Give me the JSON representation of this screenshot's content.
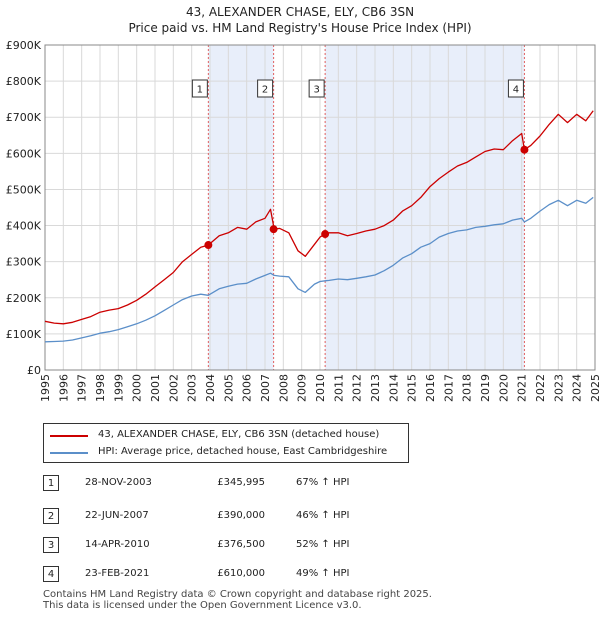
{
  "title": "43, ALEXANDER CHASE, ELY, CB6 3SN",
  "subtitle": "Price paid vs. HM Land Registry's House Price Index (HPI)",
  "colors": {
    "property": "#cc0000",
    "hpi": "#5b8fc9",
    "shade": "#e8eefa",
    "grid": "#d9d9d9"
  },
  "chart_data": {
    "type": "line",
    "title": "43, ALEXANDER CHASE, ELY, CB6 3SN",
    "subtitle": "Price paid vs. HM Land Registry's House Price Index (HPI)",
    "xlabel": "",
    "ylabel": "",
    "xlim": [
      1995.0,
      2025.0
    ],
    "ylim": [
      0,
      900000
    ],
    "x_ticks": [
      1995,
      1996,
      1997,
      1998,
      1999,
      2000,
      2001,
      2002,
      2003,
      2004,
      2005,
      2006,
      2007,
      2008,
      2009,
      2010,
      2011,
      2012,
      2013,
      2014,
      2015,
      2016,
      2017,
      2018,
      2019,
      2020,
      2021,
      2022,
      2023,
      2024,
      2025
    ],
    "x_tick_labels": [
      "1995",
      "1996",
      "1997",
      "1998",
      "1999",
      "2000",
      "2001",
      "2002",
      "2003",
      "2004",
      "2005",
      "2006",
      "2007",
      "2008",
      "2009",
      "2010",
      "2011",
      "2012",
      "2013",
      "2014",
      "2015",
      "2016",
      "2017",
      "2018",
      "2019",
      "2020",
      "2021",
      "2022",
      "2023",
      "2024",
      "2025"
    ],
    "y_ticks": [
      0,
      100000,
      200000,
      300000,
      400000,
      500000,
      600000,
      700000,
      800000,
      900000
    ],
    "y_tick_labels": [
      "£0",
      "£100K",
      "£200K",
      "£300K",
      "£400K",
      "£500K",
      "£600K",
      "£700K",
      "£800K",
      "£900K"
    ],
    "grid": true,
    "series": [
      {
        "name": "43, ALEXANDER CHASE, ELY, CB6 3SN (detached house)",
        "color": "#cc0000",
        "x": [
          1995.0,
          1995.5,
          1996.0,
          1996.5,
          1997.0,
          1997.5,
          1998.0,
          1998.5,
          1999.0,
          1999.5,
          2000.0,
          2000.5,
          2001.0,
          2001.5,
          2002.0,
          2002.5,
          2003.0,
          2003.5,
          2003.9,
          2004.5,
          2005.0,
          2005.5,
          2006.0,
          2006.5,
          2007.0,
          2007.3,
          2007.5,
          2007.8,
          2008.3,
          2008.8,
          2009.2,
          2009.7,
          2010.0,
          2010.28,
          2010.5,
          2011.0,
          2011.5,
          2012.0,
          2012.5,
          2013.0,
          2013.5,
          2014.0,
          2014.5,
          2015.0,
          2015.5,
          2016.0,
          2016.5,
          2017.0,
          2017.5,
          2018.0,
          2018.5,
          2019.0,
          2019.5,
          2020.0,
          2020.5,
          2021.0,
          2021.15,
          2021.5,
          2022.0,
          2022.5,
          2023.0,
          2023.5,
          2024.0,
          2024.5,
          2024.9
        ],
        "y": [
          135000,
          130000,
          128000,
          132000,
          140000,
          148000,
          160000,
          166000,
          170000,
          180000,
          193000,
          210000,
          230000,
          250000,
          270000,
          300000,
          320000,
          340000,
          345995,
          372000,
          380000,
          395000,
          390000,
          410000,
          420000,
          445000,
          390000,
          392000,
          380000,
          330000,
          315000,
          348000,
          368000,
          376500,
          380000,
          380000,
          372000,
          378000,
          385000,
          390000,
          400000,
          415000,
          440000,
          455000,
          478000,
          508000,
          530000,
          548000,
          565000,
          575000,
          590000,
          605000,
          612000,
          610000,
          635000,
          655000,
          610000,
          622000,
          648000,
          680000,
          708000,
          685000,
          708000,
          690000,
          718000
        ]
      },
      {
        "name": "HPI: Average price, detached house, East Cambridgeshire",
        "color": "#5b8fc9",
        "x": [
          1995.0,
          1995.5,
          1996.0,
          1996.5,
          1997.0,
          1997.5,
          1998.0,
          1998.5,
          1999.0,
          1999.5,
          2000.0,
          2000.5,
          2001.0,
          2001.5,
          2002.0,
          2002.5,
          2003.0,
          2003.5,
          2003.9,
          2004.5,
          2005.0,
          2005.5,
          2006.0,
          2006.5,
          2007.0,
          2007.3,
          2007.5,
          2007.8,
          2008.3,
          2008.8,
          2009.2,
          2009.7,
          2010.0,
          2010.28,
          2010.5,
          2011.0,
          2011.5,
          2012.0,
          2012.5,
          2013.0,
          2013.5,
          2014.0,
          2014.5,
          2015.0,
          2015.5,
          2016.0,
          2016.5,
          2017.0,
          2017.5,
          2018.0,
          2018.5,
          2019.0,
          2019.5,
          2020.0,
          2020.5,
          2021.0,
          2021.15,
          2021.5,
          2022.0,
          2022.5,
          2023.0,
          2023.5,
          2024.0,
          2024.5,
          2024.9
        ],
        "y": [
          78000,
          79000,
          80000,
          83000,
          89000,
          95000,
          102000,
          106000,
          112000,
          120000,
          128000,
          138000,
          150000,
          165000,
          180000,
          195000,
          205000,
          210000,
          207000,
          225000,
          232000,
          238000,
          240000,
          252000,
          262000,
          268000,
          262000,
          260000,
          258000,
          225000,
          215000,
          238000,
          245000,
          247000,
          248000,
          252000,
          250000,
          254000,
          258000,
          263000,
          275000,
          290000,
          310000,
          322000,
          340000,
          350000,
          368000,
          378000,
          385000,
          388000,
          395000,
          398000,
          402000,
          405000,
          415000,
          420000,
          410000,
          420000,
          440000,
          458000,
          470000,
          455000,
          470000,
          462000,
          478000
        ]
      }
    ],
    "sale_markers": [
      {
        "label": "1",
        "x": 2003.91,
        "y": 345995
      },
      {
        "label": "2",
        "x": 2007.47,
        "y": 390000
      },
      {
        "label": "3",
        "x": 2010.28,
        "y": 376500
      },
      {
        "label": "4",
        "x": 2021.15,
        "y": 610000
      }
    ],
    "shaded_ranges": [
      [
        2003.91,
        2007.47
      ],
      [
        2010.28,
        2021.15
      ]
    ]
  },
  "legend": {
    "property_label": "43, ALEXANDER CHASE, ELY, CB6 3SN (detached house)",
    "hpi_label": "HPI: Average price, detached house, East Cambridgeshire"
  },
  "transactions": [
    {
      "num": "1",
      "date": "28-NOV-2003",
      "price": "£345,995",
      "pct": "67% ↑ HPI"
    },
    {
      "num": "2",
      "date": "22-JUN-2007",
      "price": "£390,000",
      "pct": "46% ↑ HPI"
    },
    {
      "num": "3",
      "date": "14-APR-2010",
      "price": "£376,500",
      "pct": "52% ↑ HPI"
    },
    {
      "num": "4",
      "date": "23-FEB-2021",
      "price": "£610,000",
      "pct": "49% ↑ HPI"
    }
  ],
  "footer": {
    "line1": "Contains HM Land Registry data © Crown copyright and database right 2025.",
    "line2": "This data is licensed under the Open Government Licence v3.0."
  }
}
